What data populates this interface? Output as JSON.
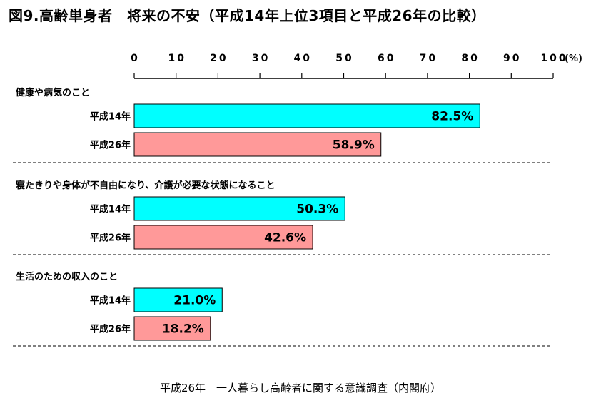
{
  "title": "図9.高齢単身者　将来の不安（平成14年上位3項目と平成26年の比較）",
  "source": "平成26年　一人暮らし高齢者に関する意識調査（内閣府）",
  "chart_data": {
    "type": "bar",
    "orientation": "horizontal",
    "x_unit": "(%)",
    "xlim": [
      0,
      100
    ],
    "x_ticks": [
      "0",
      "10",
      "20",
      "30",
      "40",
      "50",
      "60",
      "70",
      "80",
      "90",
      "100"
    ],
    "categories": [
      "健康や病気のこと",
      "寝たきりや身体が不自由になり、介護が必要な状態になること",
      "生活のための収入のこと"
    ],
    "series": [
      {
        "name": "平成14年",
        "color": "#00ffff",
        "values": [
          82.5,
          50.3,
          21.0
        ],
        "labels": [
          "82.5%",
          "50.3%",
          "21.0%"
        ]
      },
      {
        "name": "平成26年",
        "color": "#ff9999",
        "values": [
          58.9,
          42.6,
          18.2
        ],
        "labels": [
          "58.9%",
          "42.6%",
          "18.2%"
        ]
      }
    ],
    "axis_position": "top",
    "grid": false
  }
}
